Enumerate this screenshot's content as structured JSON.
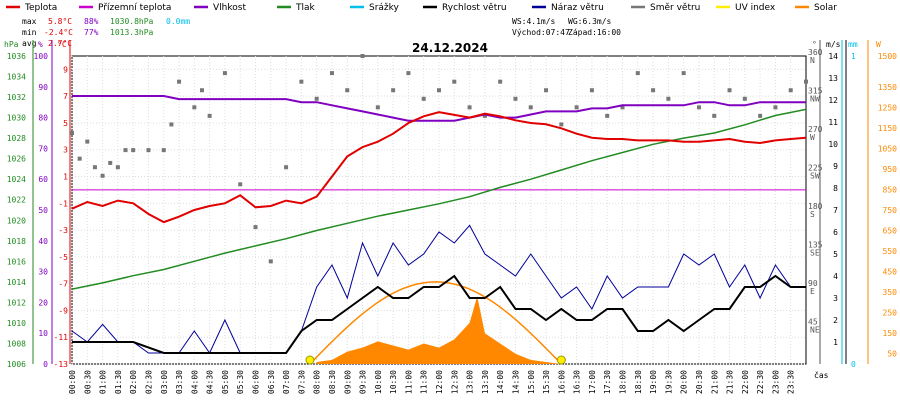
{
  "chart_data": {
    "type": "line",
    "title": "24.12.2024",
    "legend": [
      {
        "name": "Teplota",
        "color": "#e00000"
      },
      {
        "name": "Přízemní teplota",
        "color": "#cc00cc"
      },
      {
        "name": "Vlhkost",
        "color": "#8000c0"
      },
      {
        "name": "Tlak",
        "color": "#228b22"
      },
      {
        "name": "Srážky",
        "color": "#00bfe8"
      },
      {
        "name": "Rychlost větru",
        "color": "#000000"
      },
      {
        "name": "Náraz větru",
        "color": "#000099"
      },
      {
        "name": "Směr větru",
        "color": "#777777"
      },
      {
        "name": "UV index",
        "color": "#ffee00"
      },
      {
        "name": "Solar",
        "color": "#ff8800"
      }
    ],
    "stats": {
      "max_label": "max",
      "max_temp": "5.8°C",
      "max_hum": "88%",
      "max_press": "1030.8hPa",
      "rain": "0.0mm",
      "min_label": "min",
      "min_temp": "-2.4°C",
      "min_hum": "77%",
      "min_press": "1013.3hPa",
      "avg_label": "avg",
      "avg_temp": "2.7°C",
      "ws": "WS:4.1m/s",
      "wg": "WG:6.3m/s",
      "sunrise": "Východ:07:47",
      "sunset": "Západ:16:00"
    },
    "axes": {
      "hpa_unit": "hPa",
      "pct_unit": "%",
      "temp_unit": "°C",
      "dir_unit": "°",
      "wind_unit": "m/s",
      "rain_unit": "mm",
      "solar_unit": "W",
      "x_unit": "čas",
      "hpa_ticks": [
        "1036",
        "1034",
        "1032",
        "1030",
        "1028",
        "1026",
        "1024",
        "1022",
        "1020",
        "1018",
        "1016",
        "1014",
        "1012",
        "1010",
        "1008",
        "1006"
      ],
      "hpa_range": [
        1006,
        1036
      ],
      "pct_ticks": [
        "100",
        "90",
        "80",
        "70",
        "60",
        "50",
        "40",
        "30",
        "20",
        "10",
        "0"
      ],
      "temp_ticks": [
        "9",
        "7",
        "5",
        "3",
        "1",
        "-1",
        "-3",
        "-5",
        "-7",
        "-9",
        "-11",
        "-13"
      ],
      "temp_range": [
        -13,
        10
      ],
      "dir_ticks": [
        {
          "deg": "360",
          "card": "N",
          "val": 360
        },
        {
          "deg": "315",
          "card": "NW",
          "val": 315
        },
        {
          "deg": "270",
          "card": "W",
          "val": 270
        },
        {
          "deg": "225",
          "card": "SW",
          "val": 225
        },
        {
          "deg": "180",
          "card": "S",
          "val": 180
        },
        {
          "deg": "135",
          "card": "SE",
          "val": 135
        },
        {
          "deg": "90",
          "card": "E",
          "val": 90
        },
        {
          "deg": "45",
          "card": "NE",
          "val": 45
        }
      ],
      "wind_ticks": [
        "14",
        "13",
        "12",
        "11",
        "10",
        "9",
        "8",
        "7",
        "6",
        "5",
        "4",
        "3",
        "2",
        "1"
      ],
      "wind_range": [
        0,
        14
      ],
      "rain_ticks": [
        "1",
        "0"
      ],
      "solar_ticks": [
        "1500",
        "1350",
        "1250",
        "1150",
        "1050",
        "950",
        "850",
        "750",
        "650",
        "550",
        "450",
        "350",
        "250",
        "150",
        "50"
      ],
      "solar_range": [
        0,
        1500
      ],
      "x_ticks": [
        "00:00",
        "00:30",
        "01:00",
        "01:30",
        "02:00",
        "02:30",
        "03:00",
        "03:30",
        "04:00",
        "04:30",
        "05:00",
        "05:30",
        "06:00",
        "06:30",
        "07:00",
        "07:30",
        "08:00",
        "08:30",
        "09:00",
        "09:30",
        "10:00",
        "10:30",
        "11:00",
        "11:30",
        "12:00",
        "12:30",
        "13:00",
        "13:30",
        "14:00",
        "14:30",
        "15:00",
        "15:30",
        "16:00",
        "16:30",
        "17:00",
        "17:30",
        "18:00",
        "18:30",
        "19:00",
        "19:30",
        "20:00",
        "20:30",
        "21:00",
        "21:30",
        "22:00",
        "22:30",
        "23:00",
        "23:30"
      ]
    },
    "series": {
      "temperature": {
        "name": "Teplota",
        "x_hours": [
          0,
          0.5,
          1,
          1.5,
          2,
          2.5,
          3,
          3.5,
          4,
          4.5,
          5,
          5.5,
          6,
          6.5,
          7,
          7.5,
          8,
          8.5,
          9,
          9.5,
          10,
          10.5,
          11,
          11.5,
          12,
          12.5,
          13,
          13.5,
          14,
          14.5,
          15,
          15.5,
          16,
          16.5,
          17,
          17.5,
          18,
          18.5,
          19,
          19.5,
          20,
          20.5,
          21,
          21.5,
          22,
          22.5,
          23,
          23.5,
          24
        ],
        "values": [
          -1.4,
          -0.9,
          -1.2,
          -0.8,
          -1.0,
          -1.8,
          -2.4,
          -2.0,
          -1.5,
          -1.2,
          -1.0,
          -0.4,
          -1.3,
          -1.2,
          -0.8,
          -1.0,
          -0.5,
          1.0,
          2.5,
          3.2,
          3.6,
          4.2,
          5.0,
          5.5,
          5.8,
          5.6,
          5.4,
          5.7,
          5.5,
          5.2,
          5.0,
          4.9,
          4.6,
          4.2,
          3.9,
          3.8,
          3.8,
          3.7,
          3.7,
          3.7,
          3.6,
          3.6,
          3.7,
          3.8,
          3.6,
          3.5,
          3.7,
          3.8,
          3.9
        ]
      },
      "humidity": {
        "name": "Vlhkost",
        "x_hours": [
          0,
          0.5,
          1,
          1.5,
          2,
          2.5,
          3,
          3.5,
          4,
          4.5,
          5,
          5.5,
          6,
          6.5,
          7,
          7.5,
          8,
          8.5,
          9,
          9.5,
          10,
          10.5,
          11,
          11.5,
          12,
          12.5,
          13,
          13.5,
          14,
          14.5,
          15,
          15.5,
          16,
          16.5,
          17,
          17.5,
          18,
          18.5,
          19,
          19.5,
          20,
          20.5,
          21,
          21.5,
          22,
          22.5,
          23,
          23.5,
          24
        ],
        "values": [
          87,
          87,
          87,
          87,
          87,
          87,
          87,
          86,
          86,
          86,
          86,
          86,
          86,
          86,
          86,
          85,
          85,
          84,
          83,
          82,
          81,
          80,
          79,
          79,
          79,
          79,
          80,
          81,
          80,
          80,
          81,
          82,
          82,
          82,
          83,
          83,
          84,
          84,
          84,
          84,
          84,
          85,
          85,
          84,
          84,
          85,
          85,
          85,
          85
        ]
      },
      "dew_ground": {
        "name": "Přízemní teplota",
        "value": 0
      },
      "pressure": {
        "name": "Tlak",
        "x_hours": [
          0,
          1,
          2,
          3,
          4,
          5,
          6,
          7,
          8,
          9,
          10,
          11,
          12,
          13,
          14,
          15,
          16,
          17,
          18,
          19,
          20,
          21,
          22,
          23,
          24
        ],
        "values": [
          1013.3,
          1013.9,
          1014.6,
          1015.2,
          1016.0,
          1016.8,
          1017.5,
          1018.2,
          1019.0,
          1019.7,
          1020.4,
          1021.0,
          1021.6,
          1022.3,
          1023.2,
          1024.0,
          1024.9,
          1025.8,
          1026.6,
          1027.4,
          1028.0,
          1028.5,
          1029.3,
          1030.2,
          1030.8
        ]
      },
      "wind_speed": {
        "name": "Rychlost větru",
        "x_hours": [
          0,
          1,
          2,
          3,
          4,
          5,
          6,
          7,
          7.5,
          8,
          8.5,
          9,
          9.5,
          10,
          10.5,
          11,
          11.5,
          12,
          12.5,
          13,
          13.5,
          14,
          14.5,
          15,
          15.5,
          16,
          16.5,
          17,
          17.5,
          18,
          18.5,
          19,
          19.5,
          20,
          20.5,
          21,
          21.5,
          22,
          22.5,
          23,
          23.5,
          24
        ],
        "values": [
          1.0,
          1.0,
          1.0,
          0.5,
          0.5,
          0.5,
          0.5,
          0.5,
          1.5,
          2.0,
          2.0,
          2.5,
          3.0,
          3.5,
          3.0,
          3.0,
          3.5,
          3.5,
          4.0,
          3.0,
          3.0,
          3.5,
          2.5,
          2.5,
          2.0,
          2.5,
          2.0,
          2.0,
          2.5,
          2.5,
          1.5,
          1.5,
          2.0,
          1.5,
          2.0,
          2.5,
          2.5,
          3.5,
          3.5,
          4.0,
          3.5,
          3.5
        ]
      },
      "wind_gust": {
        "name": "Náraz větru",
        "x_hours": [
          0,
          0.5,
          1,
          1.5,
          2,
          2.5,
          3,
          3.5,
          4,
          4.5,
          5,
          5.5,
          6,
          6.5,
          7,
          7.5,
          8,
          8.5,
          9,
          9.5,
          10,
          10.5,
          11,
          11.5,
          12,
          12.5,
          13,
          13.5,
          14,
          14.5,
          15,
          15.5,
          16,
          16.5,
          17,
          17.5,
          18,
          18.5,
          19,
          19.5,
          20,
          20.5,
          21,
          21.5,
          22,
          22.5,
          23,
          23.5,
          24
        ],
        "values": [
          1.5,
          1.0,
          1.8,
          1.0,
          1.0,
          0.5,
          0.5,
          0.5,
          1.5,
          0.5,
          2.0,
          0.5,
          0.5,
          0.5,
          0.5,
          1.5,
          3.5,
          4.5,
          3.0,
          5.5,
          4.0,
          5.5,
          4.5,
          5.0,
          6.0,
          5.5,
          6.3,
          5.0,
          4.5,
          4.0,
          5.0,
          4.0,
          3.0,
          3.5,
          2.5,
          4.0,
          3.0,
          3.5,
          3.5,
          3.5,
          5.0,
          4.5,
          5.0,
          3.5,
          4.5,
          3.0,
          4.5,
          3.5,
          3.5
        ]
      },
      "solar": {
        "name": "Solar",
        "x_hours": [
          8.0,
          8.5,
          9.0,
          9.5,
          10.0,
          10.5,
          11.0,
          11.5,
          12.0,
          12.5,
          13.0,
          13.25,
          13.5,
          14.0,
          14.5,
          15.0,
          15.5,
          16.0
        ],
        "values": [
          10,
          20,
          60,
          80,
          110,
          90,
          70,
          100,
          80,
          120,
          200,
          330,
          150,
          100,
          50,
          20,
          10,
          0
        ]
      },
      "solar_theoretical": {
        "sunrise_h": 7.78,
        "sunset_h": 16.0,
        "peak": 400
      },
      "wind_dir_points": {
        "name": "Směr větru",
        "x_hours": [
          0,
          0.25,
          0.5,
          0.75,
          1,
          1.25,
          1.5,
          1.75,
          2,
          2.5,
          3,
          3.25,
          3.5,
          4,
          4.25,
          4.5,
          5,
          5.5,
          6,
          6.5,
          7,
          7.5,
          8,
          8.5,
          9,
          9.5,
          10,
          10.5,
          11,
          11.5,
          12,
          12.5,
          13,
          13.5,
          14,
          14.5,
          15,
          15.5,
          16,
          16.5,
          17,
          17.5,
          18,
          18.5,
          19,
          19.5,
          20,
          20.5,
          21,
          21.5,
          22,
          22.5,
          23,
          23.5,
          24
        ],
        "values": [
          270,
          240,
          260,
          230,
          220,
          235,
          230,
          250,
          250,
          250,
          250,
          280,
          330,
          300,
          320,
          290,
          340,
          210,
          160,
          120,
          230,
          330,
          310,
          340,
          320,
          360,
          300,
          320,
          340,
          310,
          320,
          330,
          300,
          290,
          330,
          310,
          300,
          320,
          280,
          300,
          320,
          290,
          300,
          340,
          320,
          310,
          340,
          300,
          290,
          320,
          310,
          290,
          300,
          320,
          330
        ]
      }
    }
  }
}
